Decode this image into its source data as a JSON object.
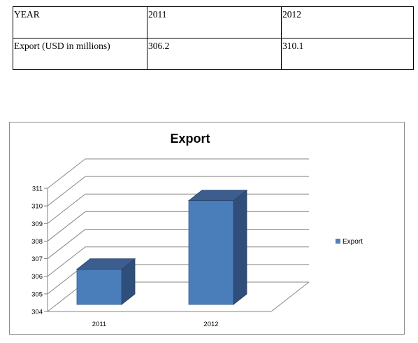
{
  "table": {
    "headers": [
      "YEAR",
      "2011",
      "2012"
    ],
    "row": [
      "Export (USD in millions)",
      "306.2",
      "310.1"
    ]
  },
  "chart_data": {
    "type": "bar",
    "title": "Export",
    "categories": [
      "2011",
      "2012"
    ],
    "series": [
      {
        "name": "Export",
        "values": [
          306.2,
          310.1
        ],
        "color": "#4f81bd"
      }
    ],
    "ylim": [
      304,
      311
    ],
    "yticks": [
      304,
      305,
      306,
      307,
      308,
      309,
      310,
      311
    ],
    "grid": true,
    "legend": "right",
    "style": "3d-column"
  }
}
